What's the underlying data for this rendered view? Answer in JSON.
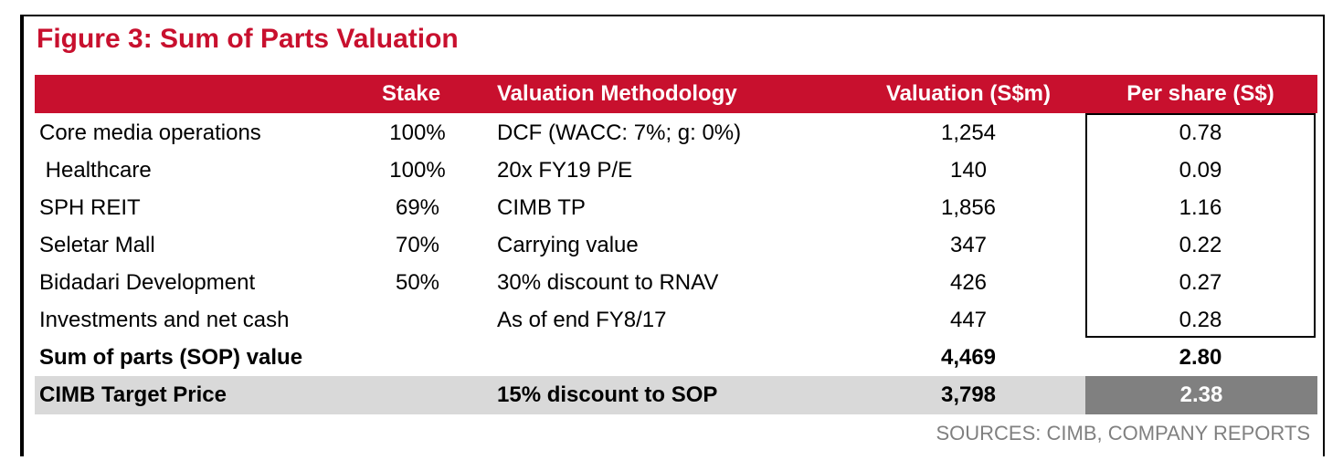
{
  "title": "Figure 3: Sum of Parts Valuation",
  "columns": {
    "stake": "Stake",
    "method": "Valuation Methodology",
    "valuation": "Valuation (S$m)",
    "per_share": "Per share (S$)"
  },
  "rows": [
    {
      "name": "Core media operations",
      "stake": "100%",
      "method": "DCF (WACC: 7%; g: 0%)",
      "valuation": "1,254",
      "per_share": "0.78"
    },
    {
      "name": " Healthcare",
      "stake": "100%",
      "method": "20x FY19 P/E",
      "valuation": "140",
      "per_share": "0.09"
    },
    {
      "name": "SPH REIT",
      "stake": "69%",
      "method": "CIMB TP",
      "valuation": "1,856",
      "per_share": "1.16"
    },
    {
      "name": "Seletar Mall",
      "stake": "70%",
      "method": "Carrying value",
      "valuation": "347",
      "per_share": "0.22"
    },
    {
      "name": "Bidadari Development",
      "stake": "50%",
      "method": "30% discount to RNAV",
      "valuation": "426",
      "per_share": "0.27"
    },
    {
      "name": "Investments and net cash",
      "stake": "",
      "method": "As of end FY8/17",
      "valuation": "447",
      "per_share": "0.28"
    }
  ],
  "sop": {
    "name": "Sum of parts (SOP) value",
    "valuation": "4,469",
    "per_share": "2.80"
  },
  "target": {
    "name": "CIMB Target Price",
    "method": "15% discount to SOP",
    "valuation": "3,798",
    "per_share": "2.38"
  },
  "sources": "SOURCES: CIMB, COMPANY REPORTS",
  "colors": {
    "accent": "#c8102e",
    "band": "#d9d9d9",
    "dark": "#808080"
  }
}
